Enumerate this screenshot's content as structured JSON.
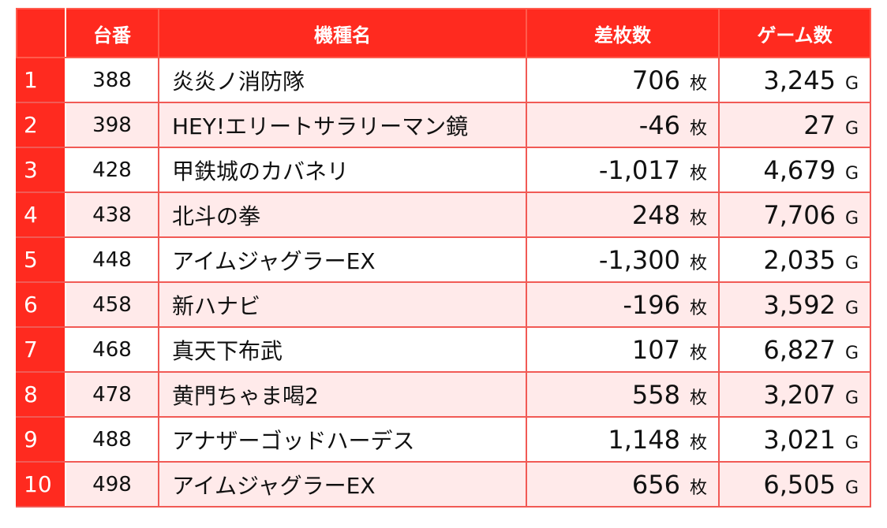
{
  "table": {
    "headers": {
      "rank": "",
      "machine_no": "台番",
      "model": "機種名",
      "diff": "差枚数",
      "games": "ゲーム数"
    },
    "diff_unit": "枚",
    "games_unit": "G",
    "rows": [
      {
        "rank": "1",
        "machine_no": "388",
        "model": "炎炎ノ消防隊",
        "diff": "706",
        "games": "3,245"
      },
      {
        "rank": "2",
        "machine_no": "398",
        "model": "HEY!エリートサラリーマン鏡",
        "diff": "-46",
        "games": "27"
      },
      {
        "rank": "3",
        "machine_no": "428",
        "model": "甲鉄城のカバネリ",
        "diff": "-1,017",
        "games": "4,679"
      },
      {
        "rank": "4",
        "machine_no": "438",
        "model": "北斗の拳",
        "diff": "248",
        "games": "7,706"
      },
      {
        "rank": "5",
        "machine_no": "448",
        "model": "アイムジャグラーEX",
        "diff": "-1,300",
        "games": "2,035"
      },
      {
        "rank": "6",
        "machine_no": "458",
        "model": "新ハナビ",
        "diff": "-196",
        "games": "3,592"
      },
      {
        "rank": "7",
        "machine_no": "468",
        "model": "真天下布武",
        "diff": "107",
        "games": "6,827"
      },
      {
        "rank": "8",
        "machine_no": "478",
        "model": "黄門ちゃま喝2",
        "diff": "558",
        "games": "3,207"
      },
      {
        "rank": "9",
        "machine_no": "488",
        "model": "アナザーゴッドハーデス",
        "diff": "1,148",
        "games": "3,021"
      },
      {
        "rank": "10",
        "machine_no": "498",
        "model": "アイムジャグラーEX",
        "diff": "656",
        "games": "6,505"
      }
    ]
  },
  "colors": {
    "header_bg": "#ff2a1f",
    "row_alt_bg": "#ffeaea",
    "border": "#f15a55"
  }
}
